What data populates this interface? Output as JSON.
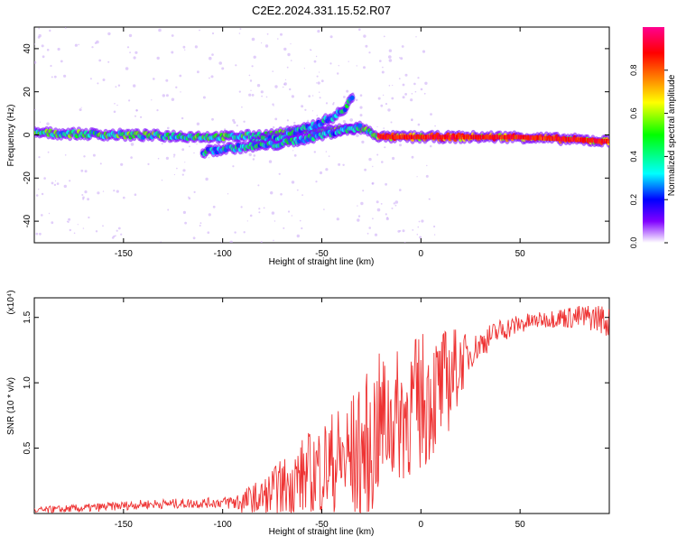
{
  "title": "C2E2.2024.331.15.52.R07",
  "chart_data": [
    {
      "type": "heatmap",
      "xlabel": "Height of straight line (km)",
      "ylabel": "Frequency (Hz)",
      "xlim": [
        -195,
        95
      ],
      "ylim": [
        -50,
        50
      ],
      "xticks": [
        -150,
        -100,
        -50,
        0,
        50
      ],
      "yticks": [
        -40,
        -20,
        0,
        20,
        40
      ],
      "colorbar": {
        "label": "Normalized spectral amplitude",
        "range": [
          0.0,
          1.0
        ],
        "ticks": [
          0.0,
          0.2,
          0.4,
          0.6,
          0.8
        ],
        "colormap": [
          "#ff0090",
          "#ff0000",
          "#ffff00",
          "#00ff00",
          "#00ffff",
          "#0000ff",
          "#8000ff",
          "#ffffff"
        ]
      },
      "ridges": [
        {
          "x": [
            -195,
            -150,
            -100,
            -75,
            -60,
            -45,
            -30,
            -20,
            0,
            50,
            95
          ],
          "y": [
            1,
            0,
            -1,
            0,
            2,
            2,
            3,
            -1,
            -1,
            -1,
            -3
          ]
        },
        {
          "x": [
            -85,
            -70,
            -55,
            -45,
            -38,
            -34
          ],
          "y": [
            -3,
            -1,
            4,
            8,
            12,
            19
          ]
        },
        {
          "x": [
            -110,
            -95,
            -80,
            -70,
            -60,
            -50,
            -40,
            -30
          ],
          "y": [
            -8,
            -6,
            -5,
            -4,
            -2,
            0,
            2,
            4
          ]
        }
      ]
    },
    {
      "type": "line",
      "xlabel": "Height of straight line (km)",
      "ylabel": "SNR (10 * v/v)",
      "y_exponent_label": "(x10⁴)",
      "xlim": [
        -195,
        95
      ],
      "ylim": [
        0,
        1.65
      ],
      "xticks": [
        -150,
        -100,
        -50,
        0,
        50
      ],
      "yticks": [
        0.5,
        1.0,
        1.5
      ],
      "color": "#ee3333",
      "envelope": {
        "x": [
          -195,
          -170,
          -140,
          -110,
          -90,
          -80,
          -70,
          -60,
          -50,
          -40,
          -30,
          -25,
          -20,
          -10,
          0,
          10,
          20,
          30,
          40,
          50,
          60,
          70,
          80,
          90,
          95
        ],
        "y": [
          0.02,
          0.04,
          0.07,
          0.08,
          0.09,
          0.12,
          0.2,
          0.28,
          0.35,
          0.4,
          0.45,
          0.55,
          0.7,
          0.75,
          0.85,
          0.95,
          1.15,
          1.3,
          1.4,
          1.45,
          1.48,
          1.5,
          1.5,
          1.5,
          1.45
        ]
      },
      "noise_amplitude": {
        "x": [
          -195,
          -100,
          -80,
          -60,
          -40,
          -25,
          -15,
          0,
          15,
          25,
          60,
          95
        ],
        "y": [
          0.03,
          0.04,
          0.15,
          0.3,
          0.45,
          0.6,
          0.5,
          0.55,
          0.4,
          0.12,
          0.06,
          0.12
        ]
      }
    }
  ]
}
